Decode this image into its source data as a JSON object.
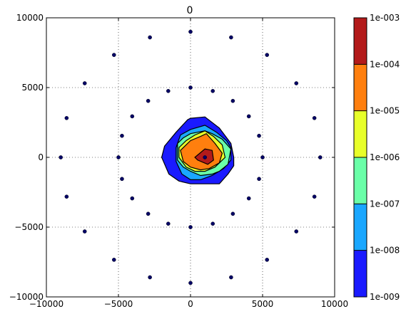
{
  "chart_data": {
    "type": "contour",
    "title": "0",
    "xlabel": "",
    "ylabel": "",
    "xlim": [
      -10000,
      10000
    ],
    "ylim": [
      -10000,
      10000
    ],
    "x_ticks": [
      -10000,
      -5000,
      0,
      5000,
      10000
    ],
    "y_ticks": [
      -10000,
      -5000,
      0,
      5000,
      10000
    ],
    "x_tick_labels": [
      "−10000",
      "−5000",
      "0",
      "5000",
      "10000"
    ],
    "y_tick_labels": [
      "−10000",
      "−5000",
      "0",
      "5000",
      "10000"
    ],
    "grid": true,
    "colorbar": {
      "scale": "log",
      "range": [
        1e-09,
        0.001
      ],
      "tick_labels": [
        "1e-009",
        "1e-008",
        "1e-007",
        "1e-006",
        "1e-005",
        "1e-004",
        "1e-003"
      ],
      "band_colors": [
        "#1a1aff",
        "#1aa7ff",
        "#6affa8",
        "#e8ff2a",
        "#ff7f0e",
        "#b31a1a"
      ]
    },
    "contour_levels": [
      {
        "level": 1e-09,
        "color": "#1a1aff",
        "x": [
          0,
          1000,
          2000,
          2800,
          3000,
          3000,
          2600,
          2000,
          0,
          -800,
          -1500,
          -2000,
          -1800,
          -1000,
          -200
        ],
        "y": [
          2800,
          2900,
          2100,
          1000,
          0,
          -600,
          -1200,
          -1900,
          -1900,
          -1700,
          -1200,
          0,
          800,
          1800,
          2700
        ]
      },
      {
        "level": 1e-08,
        "color": "#1aa7ff",
        "x": [
          0,
          1000,
          1800,
          2500,
          2800,
          2800,
          2300,
          1500,
          700,
          0,
          -600,
          -1000,
          -1000,
          -700
        ],
        "y": [
          2000,
          2300,
          1800,
          1200,
          700,
          -200,
          -800,
          -1300,
          -1600,
          -1600,
          -1200,
          -300,
          700,
          1600
        ]
      },
      {
        "level": 1e-07,
        "color": "#6affa8",
        "x": [
          -900,
          -500,
          0,
          500,
          1000,
          1500,
          2200,
          2800,
          2600,
          2000,
          1500,
          700,
          0,
          -500,
          -900
        ],
        "y": [
          1000,
          1400,
          1700,
          1800,
          1900,
          1700,
          1300,
          600,
          -500,
          -1000,
          -1200,
          -1300,
          -1000,
          -700,
          -200
        ]
      },
      {
        "level": 1e-06,
        "color": "#e8ff2a",
        "x": [
          -800,
          -300,
          300,
          1000,
          1600,
          2200,
          2400,
          1700,
          1000,
          300,
          -300,
          -800
        ],
        "y": [
          700,
          1200,
          1600,
          1900,
          1500,
          900,
          0,
          -700,
          -1000,
          -1000,
          -700,
          0
        ]
      },
      {
        "level": 1e-05,
        "color": "#ff7f0e",
        "x": [
          -700,
          0,
          700,
          1100,
          1700,
          2200,
          2000,
          1300,
          700,
          0,
          -500
        ],
        "y": [
          500,
          1200,
          1500,
          1700,
          1000,
          300,
          -400,
          -800,
          -900,
          -700,
          -300
        ]
      },
      {
        "level": 0.0001,
        "color": "#b31a1a",
        "x": [
          300,
          1000,
          1500,
          1600,
          1200,
          500
        ],
        "y": [
          0,
          600,
          500,
          -200,
          -500,
          -200
        ]
      }
    ],
    "scatter_points": {
      "color": "#000066",
      "x": [
        0,
        2816,
        5308,
        7340,
        8596,
        9000,
        8596,
        7340,
        5308,
        2816,
        0,
        -2816,
        -5308,
        -7340,
        -8596,
        -9000,
        -8596,
        -7340,
        -5308,
        -2816,
        0,
        1545,
        2939,
        4045,
        4755,
        5000,
        4755,
        4045,
        2939,
        1545,
        0,
        -1545,
        -2939,
        -4045,
        -4755,
        -5000,
        -4755,
        -4045,
        -2939,
        -1545,
        1000
      ],
      "y": [
        9000,
        8596,
        7340,
        5308,
        2816,
        0,
        -2816,
        -5308,
        -7340,
        -8596,
        -9000,
        -8596,
        -7340,
        -5308,
        -2816,
        0,
        2816,
        5308,
        7340,
        8596,
        5000,
        4755,
        4045,
        2939,
        1545,
        0,
        -1545,
        -2939,
        -4045,
        -4755,
        -5000,
        -4755,
        -4045,
        -2939,
        -1545,
        0,
        1545,
        2939,
        4045,
        4755,
        0
      ]
    }
  }
}
